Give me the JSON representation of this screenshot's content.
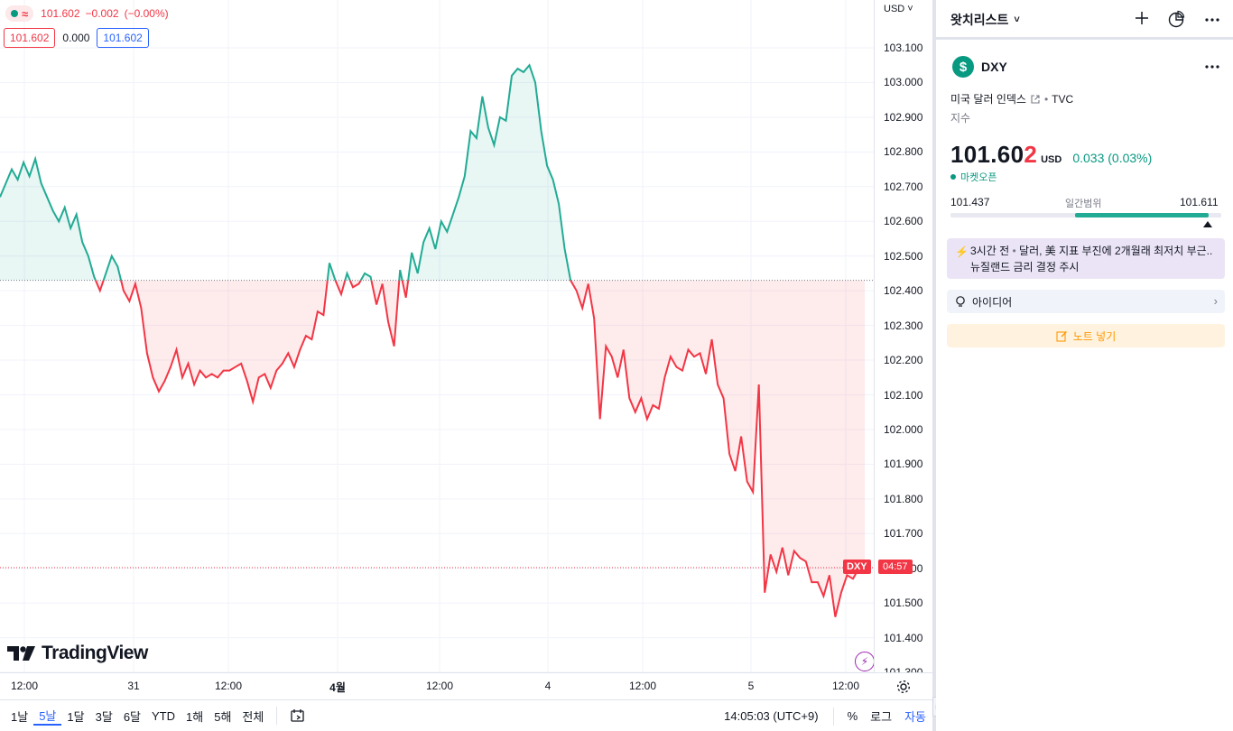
{
  "legend": {
    "price": "101.602",
    "change": "−0.002",
    "change_pct": "(−0.00%)",
    "bid": "101.602",
    "spread": "0.000",
    "ask": "101.602"
  },
  "price_axis": {
    "currency": "USD",
    "ticks": [
      "103.100",
      "103.000",
      "102.900",
      "102.800",
      "102.700",
      "102.600",
      "102.500",
      "102.400",
      "102.300",
      "102.200",
      "102.100",
      "102.000",
      "101.900",
      "101.800",
      "101.700",
      "101.600",
      "101.500",
      "101.400",
      "101.300"
    ]
  },
  "tags": {
    "symbol": "DXY",
    "countdown": "04:57"
  },
  "watermark": "TradingView",
  "time_axis": {
    "labels": [
      "12:00",
      "31",
      "12:00",
      "4월",
      "12:00",
      "4",
      "12:00",
      "5",
      "12:00"
    ]
  },
  "bottom_bar": {
    "ranges": [
      "1날",
      "5날",
      "1달",
      "3달",
      "6달",
      "YTD",
      "1해",
      "5해",
      "전체"
    ],
    "active_range": "5날",
    "clock": "14:05:03 (UTC+9)",
    "percent": "%",
    "log": "로그",
    "auto": "자동"
  },
  "watchlist": {
    "title": "왓치리스트"
  },
  "symbol": {
    "ticker": "DXY",
    "logo": "$",
    "description": "미국 달러 인덱스",
    "exchange": "TVC",
    "type": "지수",
    "price_head": "101.60",
    "price_tail": "2",
    "currency": "USD",
    "change": "0.033 (0.03%)",
    "market_status": "마켓오픈",
    "day_low": "101.437",
    "day_range_label": "일간범위",
    "day_high": "101.611"
  },
  "news": {
    "time": "3시간 전",
    "headline": "달러, 美 지표 부진에 2개월래 최저치 부근..뉴질랜드 금리 결정 주시"
  },
  "ideas": {
    "label": "아이디어"
  },
  "note": {
    "label": "노트 넣기"
  },
  "colors": {
    "up": "#22ab94",
    "down": "#f23645",
    "accent": "#2962ff"
  },
  "chart_data": {
    "type": "area",
    "title": "",
    "baseline": 102.43,
    "last": 101.602,
    "ylim": [
      101.3,
      103.15
    ],
    "grid": true,
    "x_labels": [
      "12:00",
      "31",
      "12:00",
      "4월",
      "12:00",
      "4",
      "12:00",
      "5",
      "12:00"
    ],
    "values": [
      102.67,
      102.71,
      102.75,
      102.72,
      102.77,
      102.73,
      102.78,
      102.71,
      102.67,
      102.63,
      102.6,
      102.64,
      102.58,
      102.62,
      102.54,
      102.5,
      102.44,
      102.4,
      102.45,
      102.5,
      102.47,
      102.4,
      102.37,
      102.42,
      102.35,
      102.22,
      102.15,
      102.11,
      102.14,
      102.18,
      102.23,
      102.15,
      102.19,
      102.13,
      102.17,
      102.15,
      102.16,
      102.15,
      102.17,
      102.17,
      102.18,
      102.19,
      102.14,
      102.08,
      102.15,
      102.16,
      102.12,
      102.17,
      102.19,
      102.22,
      102.18,
      102.23,
      102.27,
      102.26,
      102.34,
      102.33,
      102.48,
      102.43,
      102.39,
      102.45,
      102.41,
      102.42,
      102.45,
      102.44,
      102.36,
      102.42,
      102.31,
      102.24,
      102.46,
      102.38,
      102.51,
      102.45,
      102.54,
      102.58,
      102.52,
      102.6,
      102.57,
      102.62,
      102.67,
      102.73,
      102.86,
      102.84,
      102.96,
      102.87,
      102.82,
      102.9,
      102.89,
      103.02,
      103.04,
      103.03,
      103.05,
      103.0,
      102.86,
      102.76,
      102.72,
      102.65,
      102.52,
      102.43,
      102.4,
      102.35,
      102.42,
      102.32,
      102.03,
      102.24,
      102.21,
      102.15,
      102.23,
      102.09,
      102.05,
      102.09,
      102.03,
      102.07,
      102.06,
      102.15,
      102.21,
      102.18,
      102.17,
      102.23,
      102.21,
      102.22,
      102.16,
      102.26,
      102.13,
      102.09,
      101.93,
      101.88,
      101.98,
      101.85,
      101.82,
      102.13,
      101.53,
      101.64,
      101.59,
      101.66,
      101.58,
      101.65,
      101.63,
      101.62,
      101.56,
      101.56,
      101.52,
      101.58,
      101.46,
      101.53,
      101.58,
      101.57,
      101.6,
      101.602
    ]
  }
}
